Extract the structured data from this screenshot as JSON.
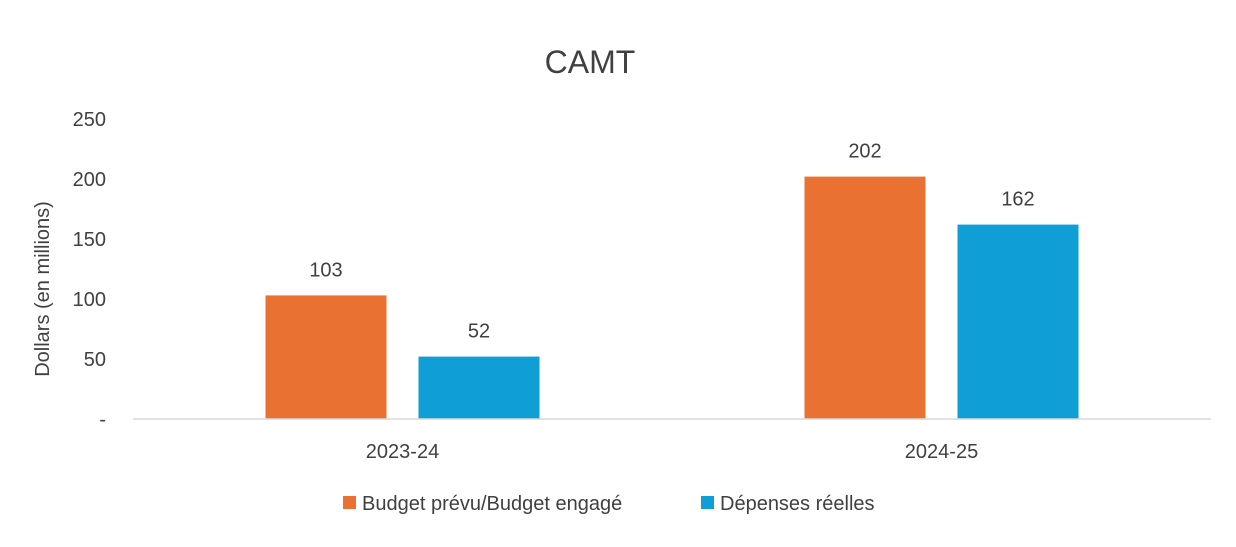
{
  "chart_data": {
    "type": "bar",
    "title": "CAMT",
    "xlabel": "",
    "ylabel": "Dollars (en millions)",
    "ylim": [
      0,
      250
    ],
    "yticks": [
      0,
      50,
      100,
      150,
      200,
      250
    ],
    "ytick_labels": [
      "-",
      "50",
      "100",
      "150",
      "200",
      "250"
    ],
    "categories": [
      "2023-24",
      "2024-25"
    ],
    "series": [
      {
        "name": "Budget prévu/Budget engagé",
        "values": [
          103,
          202
        ],
        "color": "#E97132"
      },
      {
        "name": "Dépenses réelles",
        "values": [
          52,
          162
        ],
        "color": "#0F9ED5"
      }
    ],
    "data_labels": true,
    "grid": false,
    "legend": "bottom"
  }
}
